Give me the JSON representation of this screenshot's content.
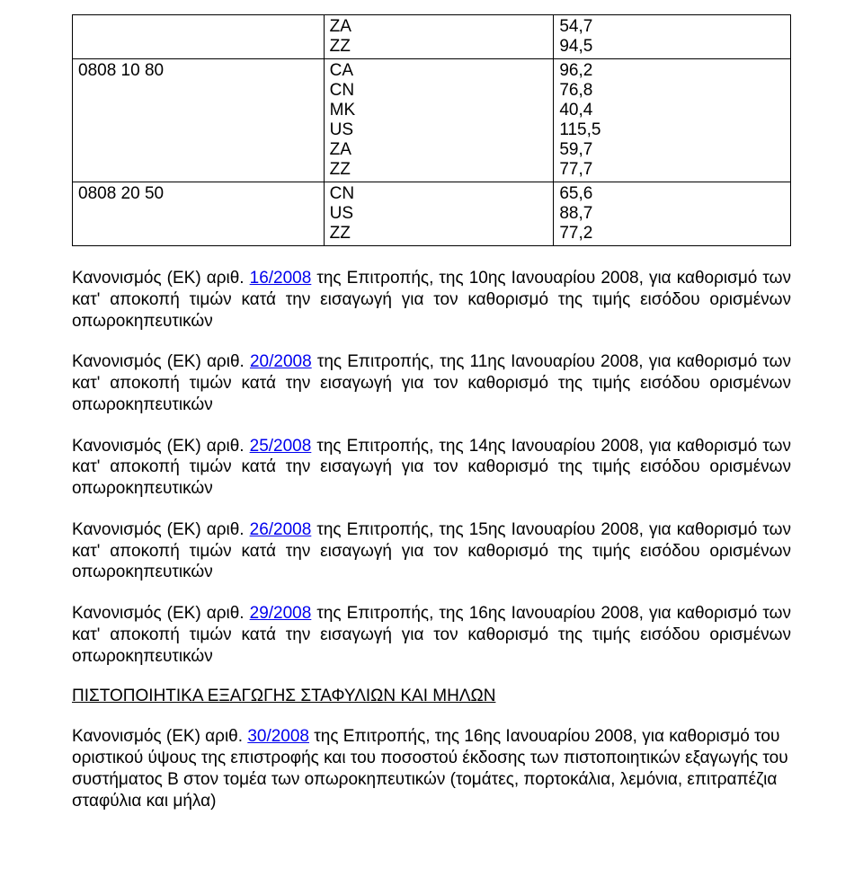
{
  "table": {
    "columns": [
      "code",
      "country_codes",
      "values"
    ],
    "column_widths_pct": [
      35,
      32,
      33
    ],
    "border_color": "#000000",
    "font_size_pt": 14,
    "rows": [
      {
        "code": "",
        "cc": [
          "ZA",
          "ZZ"
        ],
        "val": [
          "54,7",
          "94,5"
        ]
      },
      {
        "code": "0808 10 80",
        "cc": [
          "CA",
          "CN",
          "MK",
          "US",
          "ZA",
          "ZZ"
        ],
        "val": [
          "96,2",
          "76,8",
          "40,4",
          "115,5",
          "59,7",
          "77,7"
        ]
      },
      {
        "code": "0808 20 50",
        "cc": [
          "CN",
          "US",
          "ZZ"
        ],
        "val": [
          "65,6",
          "88,7",
          "77,2"
        ]
      }
    ]
  },
  "paragraphs": [
    {
      "prefix": "Κανονισμός (ΕΚ) αριθ. ",
      "link": "16/2008",
      "suffix": " της Επιτροπής, της 10ης Ιανουαρίου 2008, για καθορισμό των κατ' αποκοπή τιμών κατά την εισαγωγή για τον καθορισμό της τιμής εισόδου ορισμένων οπωροκηπευτικών"
    },
    {
      "prefix": "Κανονισμός (ΕΚ) αριθ. ",
      "link": "20/2008",
      "suffix": " της Επιτροπής, της 11ης Ιανουαρίου 2008, για καθορισμό των κατ' αποκοπή τιμών κατά την εισαγωγή για τον καθορισμό της τιμής εισόδου ορισμένων οπωροκηπευτικών"
    },
    {
      "prefix": "Κανονισμός (ΕΚ) αριθ. ",
      "link": "25/2008",
      "suffix": " της Επιτροπής, της 14ης Ιανουαρίου 2008, για καθορισμό των κατ' αποκοπή τιμών κατά την εισαγωγή για τον καθορισμό της τιμής εισόδου ορισμένων οπωροκηπευτικών"
    },
    {
      "prefix": "Κανονισμός (ΕΚ) αριθ. ",
      "link": "26/2008",
      "suffix": " της Επιτροπής, της 15ης Ιανουαρίου 2008, για καθορισμό των κατ' αποκοπή τιμών κατά την εισαγωγή για τον καθορισμό της τιμής εισόδου ορισμένων οπωροκηπευτικών"
    },
    {
      "prefix": "Κανονισμός (ΕΚ) αριθ. ",
      "link": "29/2008",
      "suffix": " της Επιτροπής, της 16ης Ιανουαρίου 2008, για καθορισμό των κατ' αποκοπή τιμών κατά την εισαγωγή για τον καθορισμό της τιμής εισόδου ορισμένων οπωροκηπευτικών"
    }
  ],
  "section_heading": "ΠΙΣΤΟΠΟΙΗΤΙΚΑ ΕΞΑΓΩΓΗΣ ΣΤΑΦΥΛΙΩΝ ΚΑΙ ΜΗΛΩΝ",
  "final_paragraph": {
    "prefix": "Κανονισμός (ΕΚ) αριθ. ",
    "link": "30/2008",
    "suffix": " της Επιτροπής, της 16ης Ιανουαρίου 2008, για καθορισμό του οριστικού ύψους της επιστροφής και του ποσοστού έκδοσης των πιστοποιητικών εξαγωγής του συστήματος Β στον τομέα των οπωροκηπευτικών (τομάτες, πορτοκάλια, λεμόνια, επιτραπέζια σταφύλια και μήλα)"
  },
  "style": {
    "link_color": "#0000ee",
    "text_color": "#000000",
    "background_color": "#ffffff",
    "body_font_size_pt": 14,
    "font_family": "Arial"
  }
}
